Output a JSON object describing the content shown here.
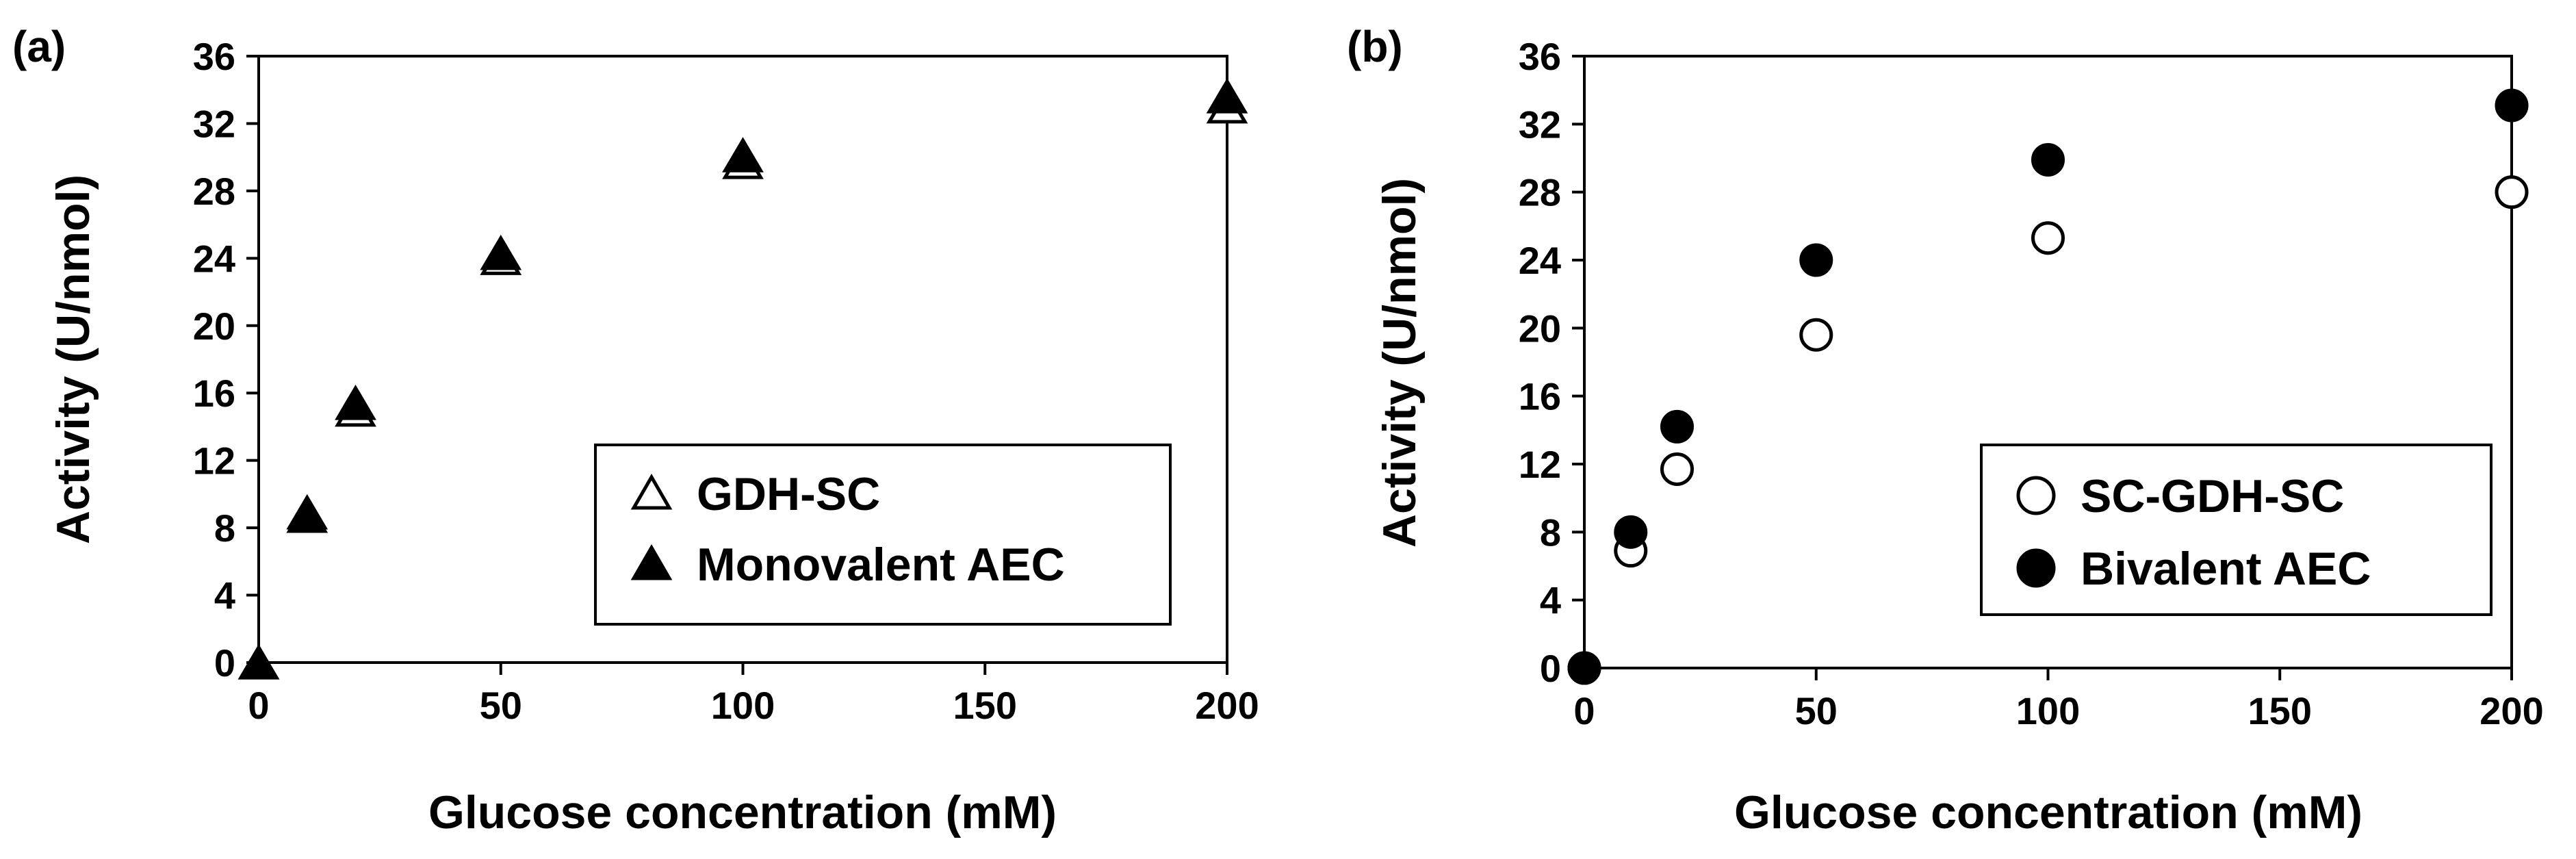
{
  "chart_data": [
    {
      "panel_label": "(a)",
      "type": "scatter",
      "xlabel": "Glucose concentration (mM)",
      "ylabel": "Activity (U/nmol)",
      "xlim": [
        0,
        200
      ],
      "ylim": [
        0,
        36
      ],
      "xticks": [
        "0",
        "50",
        "100",
        "150",
        "200"
      ],
      "yticks": [
        "0",
        "4",
        "8",
        "12",
        "16",
        "20",
        "24",
        "28",
        "32",
        "36"
      ],
      "grid": false,
      "legend_position": "bottom-right",
      "series": [
        {
          "name": "GDH-SC",
          "marker": "open-triangle",
          "x": [
            0,
            10,
            20,
            50,
            100,
            200
          ],
          "y": [
            0,
            8.7,
            15.0,
            24.0,
            29.7,
            33.0
          ]
        },
        {
          "name": "Monovalent AEC",
          "marker": "filled-triangle",
          "x": [
            0,
            10,
            20,
            50,
            100,
            200
          ],
          "y": [
            0,
            8.9,
            15.4,
            24.3,
            30.1,
            33.6
          ]
        }
      ]
    },
    {
      "panel_label": "(b)",
      "type": "scatter",
      "xlabel": "Glucose concentration (mM)",
      "ylabel": "Activity (U/nmol)",
      "xlim": [
        0,
        200
      ],
      "ylim": [
        0,
        36
      ],
      "xticks": [
        "0",
        "50",
        "100",
        "150",
        "200"
      ],
      "yticks": [
        "0",
        "4",
        "8",
        "12",
        "16",
        "20",
        "24",
        "28",
        "32",
        "36"
      ],
      "grid": false,
      "legend_position": "bottom-right",
      "series": [
        {
          "name": "SC-GDH-SC",
          "marker": "open-circle",
          "x": [
            0,
            10,
            20,
            50,
            100,
            200
          ],
          "y": [
            0,
            6.9,
            11.7,
            19.6,
            25.3,
            28.0
          ]
        },
        {
          "name": "Bivalent AEC",
          "marker": "filled-circle",
          "x": [
            0,
            10,
            20,
            50,
            100,
            200
          ],
          "y": [
            0,
            8.0,
            14.2,
            24.0,
            29.9,
            33.1
          ]
        }
      ]
    }
  ]
}
